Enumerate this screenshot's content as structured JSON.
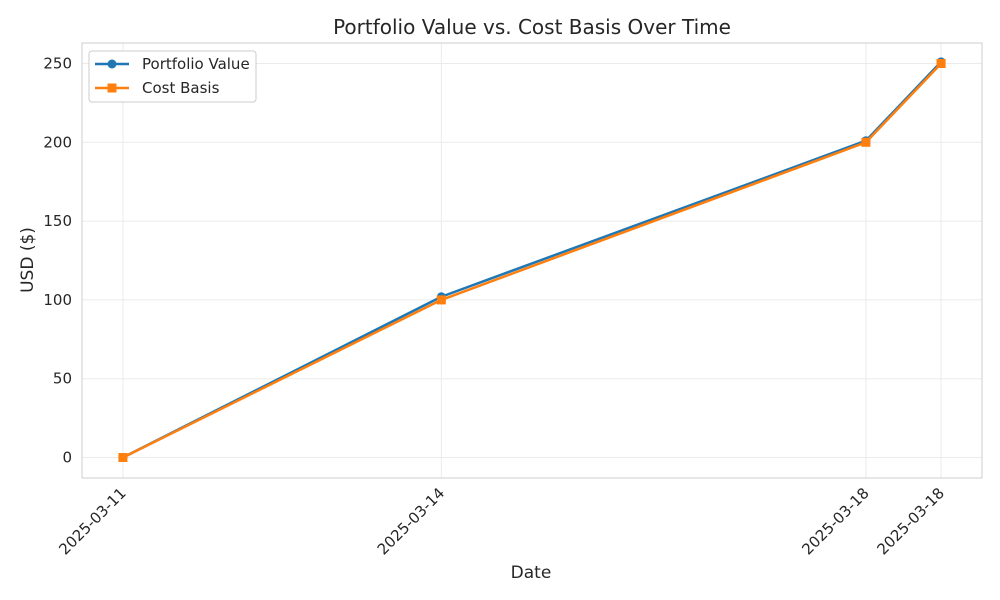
{
  "chart_data": {
    "type": "line",
    "title": "Portfolio Value vs. Cost Basis Over Time",
    "xlabel": "Date",
    "ylabel": "USD ($)",
    "x": [
      "2025-03-11",
      "2025-03-14",
      "2025-03-18",
      "2025-03-18"
    ],
    "x_positions": [
      "2025-03-11",
      "2025-03-14",
      "2025-03-18 00:00",
      "2025-03-18 17:00"
    ],
    "x_tick_labels": [
      "2025-03-11",
      "2025-03-14",
      "2025-03-18",
      "2025-03-18"
    ],
    "y_ticks": [
      0,
      50,
      100,
      150,
      200,
      250
    ],
    "ylim": [
      -13,
      263
    ],
    "grid": true,
    "legend_position": "top-left",
    "series": [
      {
        "name": "Portfolio Value",
        "color": "#1f77b4",
        "marker": "circle",
        "values": [
          0,
          102,
          201,
          251
        ]
      },
      {
        "name": "Cost Basis",
        "color": "#ff7f0e",
        "marker": "square",
        "values": [
          0,
          100,
          200,
          250
        ]
      }
    ]
  }
}
